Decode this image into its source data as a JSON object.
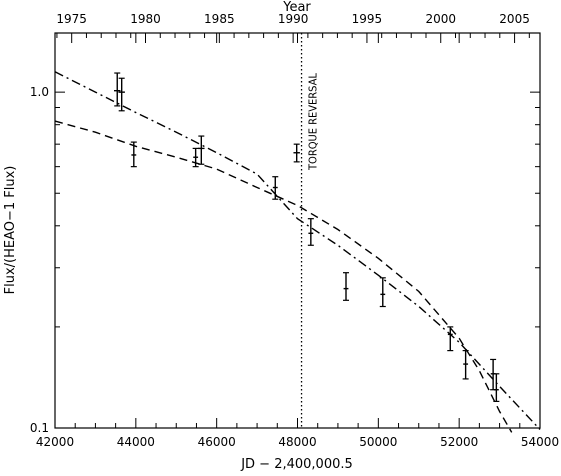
{
  "chart_data": {
    "type": "scatter",
    "title": "",
    "xlabel": "JD − 2,400,000.5",
    "ylabel": "Flux/(HEAO−1 Flux)",
    "top_axis_label": "Year",
    "xlim": [
      42000,
      54000
    ],
    "ylim": [
      0.1,
      1.5
    ],
    "y_scale": "log",
    "x_ticks": [
      42000,
      44000,
      46000,
      48000,
      50000,
      52000,
      54000
    ],
    "x_tick_labels": [
      "42000",
      "44000",
      "46000",
      "48000",
      "50000",
      "52000",
      "54000"
    ],
    "y_ticks": [
      0.1,
      1.0
    ],
    "y_tick_labels": [
      "0.1",
      "1.0"
    ],
    "top_ticks": [
      {
        "year": 1975,
        "jd": 42413
      },
      {
        "year": 1980,
        "jd": 44239
      },
      {
        "year": 1985,
        "jd": 46066
      },
      {
        "year": 1990,
        "jd": 47892
      },
      {
        "year": 1995,
        "jd": 49718
      },
      {
        "year": 2000,
        "jd": 51544
      },
      {
        "year": 2005,
        "jd": 53371
      }
    ],
    "top_tick_labels": [
      "1975",
      "1980",
      "1985",
      "1990",
      "1995",
      "2000",
      "2005"
    ],
    "points": [
      {
        "x": 43540,
        "y": 1.01,
        "yerr_lo": 0.91,
        "yerr_hi": 1.14,
        "xerr": 80
      },
      {
        "x": 43650,
        "y": 1.0,
        "yerr_lo": 0.88,
        "yerr_hi": 1.1,
        "xerr": 80
      },
      {
        "x": 43950,
        "y": 0.65,
        "yerr_lo": 0.6,
        "yerr_hi": 0.71,
        "xerr": 60
      },
      {
        "x": 45480,
        "y": 0.64,
        "yerr_lo": 0.6,
        "yerr_hi": 0.68,
        "xerr": 60
      },
      {
        "x": 45620,
        "y": 0.68,
        "yerr_lo": 0.61,
        "yerr_hi": 0.74,
        "xerr": 80
      },
      {
        "x": 47450,
        "y": 0.52,
        "yerr_lo": 0.48,
        "yerr_hi": 0.56,
        "xerr": 60
      },
      {
        "x": 47980,
        "y": 0.66,
        "yerr_lo": 0.62,
        "yerr_hi": 0.7,
        "xerr": 80
      },
      {
        "x": 48330,
        "y": 0.38,
        "yerr_lo": 0.35,
        "yerr_hi": 0.42,
        "xerr": 60
      },
      {
        "x": 49200,
        "y": 0.26,
        "yerr_lo": 0.24,
        "yerr_hi": 0.29,
        "xerr": 60
      },
      {
        "x": 50110,
        "y": 0.25,
        "yerr_lo": 0.23,
        "yerr_hi": 0.28,
        "xerr": 60
      },
      {
        "x": 51780,
        "y": 0.19,
        "yerr_lo": 0.17,
        "yerr_hi": 0.2,
        "xerr": 60
      },
      {
        "x": 52160,
        "y": 0.155,
        "yerr_lo": 0.14,
        "yerr_hi": 0.17,
        "xerr": 60
      },
      {
        "x": 52840,
        "y": 0.145,
        "yerr_lo": 0.13,
        "yerr_hi": 0.16,
        "xerr": 60
      },
      {
        "x": 52920,
        "y": 0.13,
        "yerr_lo": 0.12,
        "yerr_hi": 0.145,
        "xerr": 60
      }
    ],
    "series": [
      {
        "style": "dashdot",
        "x": [
          42000,
          43000,
          44000,
          45000,
          46000,
          47000,
          48000,
          49000,
          50000,
          51000,
          52000,
          53000,
          54000
        ],
        "y": [
          1.15,
          1.0,
          0.87,
          0.76,
          0.66,
          0.57,
          0.42,
          0.35,
          0.285,
          0.23,
          0.18,
          0.133,
          0.099
        ]
      },
      {
        "style": "dashed",
        "x": [
          42000,
          43000,
          44000,
          45000,
          46000,
          47000,
          48000,
          49000,
          50000,
          51000,
          52000,
          52500,
          53000,
          53300
        ],
        "y": [
          0.82,
          0.76,
          0.69,
          0.64,
          0.59,
          0.52,
          0.46,
          0.39,
          0.32,
          0.255,
          0.185,
          0.148,
          0.112,
          0.097
        ]
      }
    ],
    "vline": {
      "x": 48100,
      "label": "TORQUE REVERSAL"
    }
  }
}
